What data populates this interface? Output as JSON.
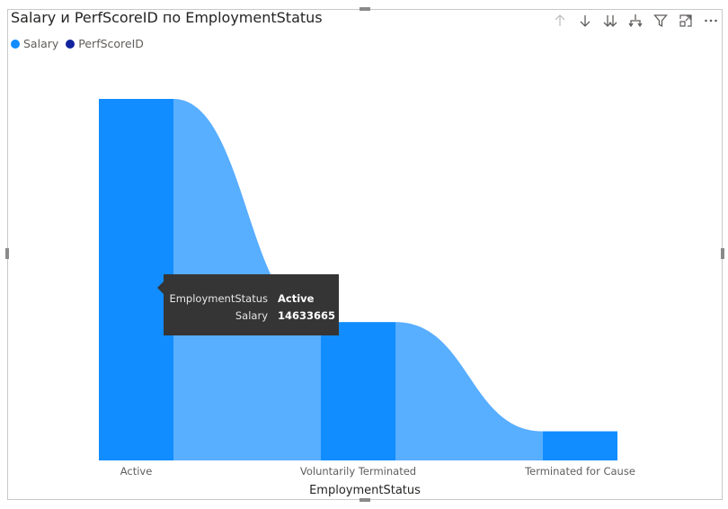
{
  "visual": {
    "title": "Salary и PerfScoreID по EmploymentStatus"
  },
  "toolbar": {
    "icons": [
      "drill-up-icon",
      "drill-down-icon",
      "expand-all-icon",
      "expand-next-level-icon",
      "filter-icon",
      "focus-mode-icon",
      "more-options-icon"
    ]
  },
  "legend": {
    "items": [
      {
        "label": "Salary",
        "color": "#118DFF"
      },
      {
        "label": "PerfScoreID",
        "color": "#12239E"
      }
    ]
  },
  "tooltip": {
    "rows": [
      {
        "key": "EmploymentStatus",
        "value": "Active"
      },
      {
        "key": "Salary",
        "value": "14633665"
      }
    ]
  },
  "chart_data": {
    "type": "ribbon",
    "xlabel": "EmploymentStatus",
    "categories": [
      "Active",
      "Voluntarily Terminated",
      "Terminated for Cause"
    ],
    "series": [
      {
        "name": "Salary",
        "values": [
          14633665,
          5600000,
          1180000
        ],
        "color": "#118DFF",
        "ribbon_color": "#58AEFF"
      }
    ],
    "ylim": [
      0,
      14633665
    ],
    "grid": false,
    "legend_position": "top-left"
  }
}
